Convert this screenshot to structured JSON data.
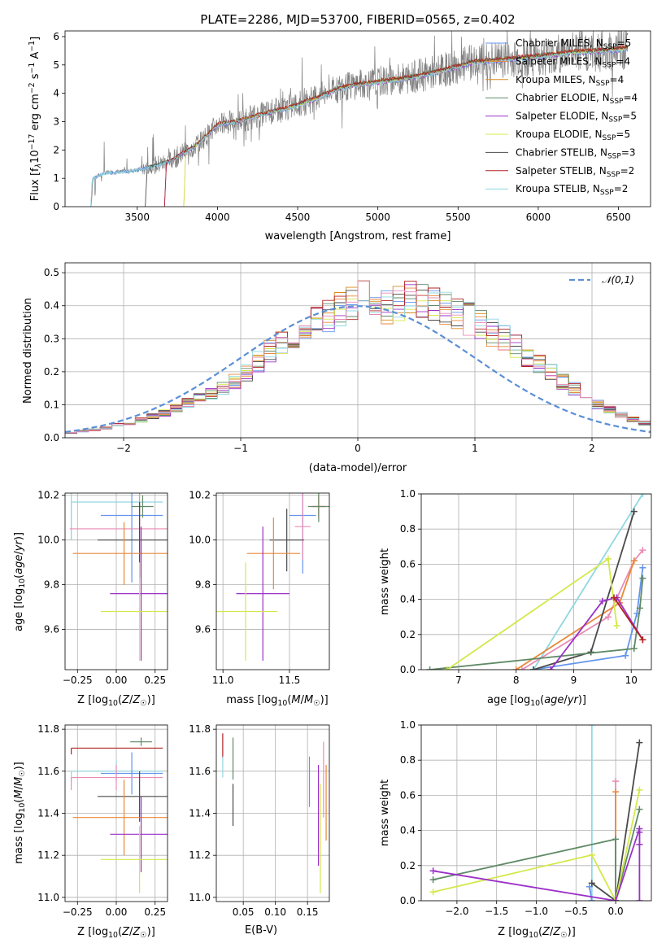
{
  "chart_data": [
    {
      "id": "spectrum",
      "type": "line",
      "title": "PLATE=2286, MJD=53700, FIBERID=0565, z=0.402",
      "xlabel": "wavelength [Angstrom, rest frame]",
      "ylabel_parts": [
        "Flux [f",
        "λ",
        "10",
        "−17",
        " erg cm",
        "−2",
        " s",
        "−1",
        " A",
        "−1",
        "]"
      ],
      "xlim": [
        3050,
        6700
      ],
      "ylim": [
        0,
        6.2
      ],
      "xticks": [
        3500,
        4000,
        4500,
        5000,
        5500,
        6000,
        6500
      ],
      "yticks": [
        0,
        1,
        2,
        3,
        4,
        5,
        6
      ],
      "data_knots": {
        "x": [
          3210,
          3220,
          3300,
          3450,
          3550,
          3700,
          3850,
          3950,
          4000,
          4150,
          4300,
          4450,
          4600,
          4750,
          4850,
          5000,
          5200,
          5400,
          5600,
          5800,
          6000,
          6200,
          6400,
          6500,
          6550
        ],
        "y": [
          0.0,
          1.0,
          1.2,
          1.25,
          1.35,
          1.6,
          2.1,
          2.6,
          2.9,
          3.05,
          3.3,
          3.5,
          3.8,
          4.15,
          4.3,
          4.4,
          4.55,
          4.8,
          5.1,
          5.2,
          5.3,
          5.45,
          5.5,
          5.55,
          5.6
        ]
      },
      "legend_position": "upper right",
      "series": [
        {
          "name": "Chabrier MILES",
          "nssp": "5",
          "color": "#6495ed"
        },
        {
          "name": "Salpeter MILES",
          "nssp": "4",
          "color": "#e8883a"
        },
        {
          "name": "Kroupa MILES",
          "nssp": "4",
          "color": "#d98c1f"
        },
        {
          "name": "Chabrier ELODIE",
          "nssp": "4",
          "color": "#5f8a66"
        },
        {
          "name": "Salpeter ELODIE",
          "nssp": "5",
          "color": "#9b30c8"
        },
        {
          "name": "Kroupa ELODIE",
          "nssp": "5",
          "color": "#d4e84a"
        },
        {
          "name": "Chabrier STELIB",
          "nssp": "3",
          "color": "#4a4a4a"
        },
        {
          "name": "Salpeter STELIB",
          "nssp": "2",
          "color": "#b22222"
        },
        {
          "name": "Kroupa STELIB",
          "nssp": "2",
          "color": "#8fd8e0"
        }
      ]
    },
    {
      "id": "residuals",
      "type": "line",
      "xlabel": "(data-model)/error",
      "ylabel": "Normed distribution",
      "xlim": [
        -2.5,
        2.5
      ],
      "ylim": [
        0,
        0.53
      ],
      "xticks": [
        -2,
        -1,
        0,
        1,
        2
      ],
      "yticks": [
        0.0,
        0.1,
        0.2,
        0.3,
        0.4,
        0.5
      ],
      "grid": true,
      "legend": "𝒩(0,1)",
      "legend_position": "upper right",
      "normal_curve_color": "#5b8fd6",
      "bin_width": 0.1,
      "histogram_profile": [
        0.015,
        0.02,
        0.025,
        0.03,
        0.04,
        0.045,
        0.055,
        0.065,
        0.075,
        0.09,
        0.105,
        0.12,
        0.135,
        0.15,
        0.17,
        0.2,
        0.23,
        0.26,
        0.29,
        0.31,
        0.33,
        0.35,
        0.37,
        0.39,
        0.41,
        0.43,
        0.42,
        0.4,
        0.41,
        0.42,
        0.41,
        0.4,
        0.39,
        0.38,
        0.36,
        0.34,
        0.32,
        0.3,
        0.28,
        0.25,
        0.22,
        0.2,
        0.17,
        0.15,
        0.12,
        0.1,
        0.085,
        0.07,
        0.055,
        0.045
      ]
    },
    {
      "id": "age_vs_Z",
      "type": "scatter",
      "xlabel": "Z [log10(Z/Z☉)]",
      "ylabel": "age  [log10(age/yr)]",
      "xlim": [
        -0.33,
        0.33
      ],
      "ylim": [
        9.42,
        10.21
      ],
      "xticks": [
        -0.25,
        0.0,
        0.25
      ],
      "yticks": [
        9.6,
        9.8,
        10.0,
        10.2
      ],
      "grid": true,
      "points": [
        {
          "x": -0.29,
          "y": 10.17,
          "xerr": 0.0,
          "yerr": 0.17,
          "color": "#8fd8e0",
          "hx": [
            -0.29,
            0.3
          ]
        },
        {
          "x": 0.1,
          "y": 10.11,
          "xerr": 0.2,
          "yerr": 0.3,
          "color": "#6495ed"
        },
        {
          "x": 0.15,
          "y": 10.05,
          "xerr": 0.45,
          "yerr": 0.2,
          "color": "#e88cb4"
        },
        {
          "x": 0.17,
          "y": 10.15,
          "xerr": 0.07,
          "yerr": 0.05,
          "color": "#5f8a66"
        },
        {
          "x": 0.15,
          "y": 10.0,
          "xerr": 0.27,
          "yerr": 0.17,
          "color": "#4a4a4a"
        },
        {
          "x": 0.05,
          "y": 9.94,
          "xerr": 0.33,
          "yerr": 0.14,
          "color": "#e8883a"
        },
        {
          "x": 0.16,
          "y": 9.76,
          "xerr": 0.2,
          "yerr": 0.3,
          "color": "#9b30c8"
        },
        {
          "x": 0.15,
          "y": 9.68,
          "xerr": 0.25,
          "yerr": 0.22,
          "color": "#d4e84a"
        }
      ]
    },
    {
      "id": "age_vs_mass",
      "type": "scatter",
      "xlabel": "mass [log10(M/M☉)]",
      "xlim": [
        10.95,
        11.8
      ],
      "ylim": [
        9.42,
        10.21
      ],
      "xticks": [
        11.0,
        11.5
      ],
      "yticks": [
        9.6,
        9.8,
        10.0,
        10.2
      ],
      "grid": true,
      "points": [
        {
          "x": 11.72,
          "y": 10.15,
          "xerr": 0.05,
          "yerr": 0.05,
          "color": "#b22222"
        },
        {
          "x": 11.72,
          "y": 10.15,
          "xerr": 0.08,
          "yerr": 0.07,
          "color": "#5f8a66"
        },
        {
          "x": 11.6,
          "y": 10.11,
          "xerr": 0.1,
          "yerr": 0.26,
          "color": "#6495ed"
        },
        {
          "x": 11.6,
          "y": 10.06,
          "xerr": 0.06,
          "yerr": 0.15,
          "color": "#e88cb4"
        },
        {
          "x": 11.48,
          "y": 10.0,
          "xerr": 0.13,
          "yerr": 0.14,
          "color": "#4a4a4a"
        },
        {
          "x": 11.38,
          "y": 9.94,
          "xerr": 0.2,
          "yerr": 0.16,
          "color": "#e8883a"
        },
        {
          "x": 11.3,
          "y": 9.76,
          "xerr": 0.2,
          "yerr": 0.3,
          "color": "#9b30c8"
        },
        {
          "x": 11.17,
          "y": 9.68,
          "xerr": 0.24,
          "yerr": 0.22,
          "color": "#d4e84a"
        }
      ]
    },
    {
      "id": "massweight_vs_age",
      "type": "line",
      "xlabel": "age  [log10(age/yr)]",
      "ylabel": "mass weight",
      "xlim": [
        6.35,
        10.35
      ],
      "ylim": [
        0,
        1.0
      ],
      "xticks": [
        7,
        8,
        9,
        10
      ],
      "yticks": [
        0.0,
        0.2,
        0.4,
        0.6,
        0.8,
        1.0
      ],
      "grid": true,
      "series": [
        {
          "color": "#8fd8e0",
          "x": [
            8.3,
            10.2
          ],
          "y": [
            0.0,
            1.0
          ]
        },
        {
          "color": "#6495ed",
          "x": [
            8.3,
            9.9,
            10.1,
            10.2
          ],
          "y": [
            0.0,
            0.08,
            0.32,
            0.58
          ]
        },
        {
          "color": "#e88cb4",
          "x": [
            8.1,
            9.6,
            10.05,
            10.2
          ],
          "y": [
            0.0,
            0.3,
            0.62,
            0.68
          ]
        },
        {
          "color": "#e8883a",
          "x": [
            8.0,
            9.8,
            10.05
          ],
          "y": [
            0.0,
            0.38,
            0.62
          ]
        },
        {
          "color": "#4a4a4a",
          "x": [
            8.3,
            9.3,
            10.05
          ],
          "y": [
            0.0,
            0.1,
            0.9
          ]
        },
        {
          "color": "#5f8a66",
          "x": [
            6.5,
            10.05,
            10.15,
            10.2
          ],
          "y": [
            0.0,
            0.12,
            0.35,
            0.52
          ]
        },
        {
          "color": "#9b30c8",
          "x": [
            8.6,
            9.5,
            9.75,
            10.2
          ],
          "y": [
            0.0,
            0.39,
            0.41,
            0.17
          ]
        },
        {
          "color": "#d4e84a",
          "x": [
            6.8,
            9.6,
            9.75
          ],
          "y": [
            0.0,
            0.63,
            0.25
          ]
        },
        {
          "color": "#b22222",
          "x": [
            9.7,
            10.2
          ],
          "y": [
            0.41,
            0.17
          ]
        }
      ]
    },
    {
      "id": "mass_vs_Z",
      "type": "scatter",
      "xlabel": "Z [log10(Z/Z☉)]",
      "ylabel": "mass [log10(M/M☉)]",
      "xlim": [
        -0.33,
        0.33
      ],
      "ylim": [
        10.98,
        11.82
      ],
      "xticks": [
        -0.25,
        0.0,
        0.25
      ],
      "yticks": [
        11.0,
        11.2,
        11.4,
        11.6,
        11.8
      ],
      "grid": true,
      "points": [
        {
          "x": 0.0,
          "y": 11.71,
          "xerr": 0.3,
          "yerr": 0.0,
          "color": "#b22222",
          "hx": [
            -0.29,
            0.3
          ]
        },
        {
          "x": 0.16,
          "y": 11.74,
          "xerr": 0.07,
          "yerr": 0.02,
          "color": "#5f8a66"
        },
        {
          "x": 0.0,
          "y": 11.6,
          "xerr": 0.3,
          "yerr": 0.05,
          "color": "#8fd8e0",
          "hx": [
            -0.29,
            0.3
          ]
        },
        {
          "x": 0.1,
          "y": 11.59,
          "xerr": 0.2,
          "yerr": 0.1,
          "color": "#6495ed"
        },
        {
          "x": 0.0,
          "y": 11.57,
          "xerr": 0.3,
          "yerr": 0.06,
          "color": "#e88cb4",
          "hx": [
            -0.29,
            0.3
          ]
        },
        {
          "x": 0.15,
          "y": 11.48,
          "xerr": 0.27,
          "yerr": 0.12,
          "color": "#4a4a4a"
        },
        {
          "x": 0.05,
          "y": 11.38,
          "xerr": 0.33,
          "yerr": 0.18,
          "color": "#e8883a"
        },
        {
          "x": 0.16,
          "y": 11.3,
          "xerr": 0.2,
          "yerr": 0.18,
          "color": "#9b30c8"
        },
        {
          "x": 0.15,
          "y": 11.18,
          "xerr": 0.25,
          "yerr": 0.16,
          "color": "#d4e84a"
        }
      ]
    },
    {
      "id": "mass_vs_ebv",
      "type": "scatter",
      "xlabel": "E(B-V)",
      "xlim": [
        0.008,
        0.184
      ],
      "ylim": [
        10.98,
        11.82
      ],
      "xticks": [
        0.05,
        0.1,
        0.15
      ],
      "yticks": [
        11.0,
        11.2,
        11.4,
        11.6,
        11.8
      ],
      "grid": true,
      "points": [
        {
          "x": 0.018,
          "y": 11.72,
          "yerr": 0.06,
          "color": "#b22222"
        },
        {
          "x": 0.018,
          "y": 11.62,
          "yerr": 0.05,
          "color": "#8fd8e0"
        },
        {
          "x": 0.034,
          "y": 11.66,
          "yerr": 0.1,
          "color": "#5f8a66"
        },
        {
          "x": 0.034,
          "y": 11.44,
          "yerr": 0.1,
          "color": "#4a4a4a"
        },
        {
          "x": 0.153,
          "y": 11.55,
          "yerr": 0.12,
          "color": "#6495ed"
        },
        {
          "x": 0.167,
          "y": 11.39,
          "yerr": 0.24,
          "color": "#9b30c8"
        },
        {
          "x": 0.17,
          "y": 11.28,
          "yerr": 0.26,
          "color": "#d4e84a"
        },
        {
          "x": 0.175,
          "y": 11.56,
          "yerr": 0.18,
          "color": "#e88cb4"
        },
        {
          "x": 0.179,
          "y": 11.45,
          "yerr": 0.18,
          "color": "#e8883a"
        }
      ]
    },
    {
      "id": "massweight_vs_Z",
      "type": "line",
      "xlabel": "Z [log10(Z/Z☉)]",
      "ylabel": "mass weight",
      "xlim": [
        -2.45,
        0.45
      ],
      "ylim": [
        0,
        1.0
      ],
      "xticks": [
        -2.0,
        -1.5,
        -1.0,
        -0.5,
        0.0
      ],
      "yticks": [
        0.0,
        0.2,
        0.4,
        0.6,
        0.8,
        1.0
      ],
      "grid": true,
      "series": [
        {
          "color": "#8fd8e0",
          "x": [
            -0.3,
            -0.3
          ],
          "y": [
            0.0,
            1.0
          ]
        },
        {
          "color": "#e88cb4",
          "x": [
            0.0,
            0.0
          ],
          "y": [
            0.0,
            0.68
          ]
        },
        {
          "color": "#e8883a",
          "x": [
            0.0,
            0.0
          ],
          "y": [
            0.0,
            0.62
          ]
        },
        {
          "color": "#6495ed",
          "x": [
            -0.33,
            -0.3
          ],
          "y": [
            0.08,
            0.0
          ]
        },
        {
          "color": "#4a4a4a",
          "x": [
            -0.3,
            0.0,
            0.3
          ],
          "y": [
            0.1,
            0.0,
            0.9
          ]
        },
        {
          "color": "#5f8a66",
          "x": [
            -2.3,
            0.0,
            0.0,
            0.3
          ],
          "y": [
            0.12,
            0.35,
            0.0,
            0.52
          ]
        },
        {
          "color": "#d4e84a",
          "x": [
            -2.3,
            -0.3,
            0.0,
            0.3
          ],
          "y": [
            0.05,
            0.26,
            0.0,
            0.63
          ]
        },
        {
          "color": "#9b30c8",
          "x": [
            -2.3,
            0.0,
            0.3,
            0.3
          ],
          "y": [
            0.17,
            0.0,
            0.41,
            0.0
          ]
        },
        {
          "color": "#9b30c8",
          "x": [
            0.3,
            0.3
          ],
          "y": [
            0.32,
            0.39
          ]
        }
      ]
    }
  ]
}
